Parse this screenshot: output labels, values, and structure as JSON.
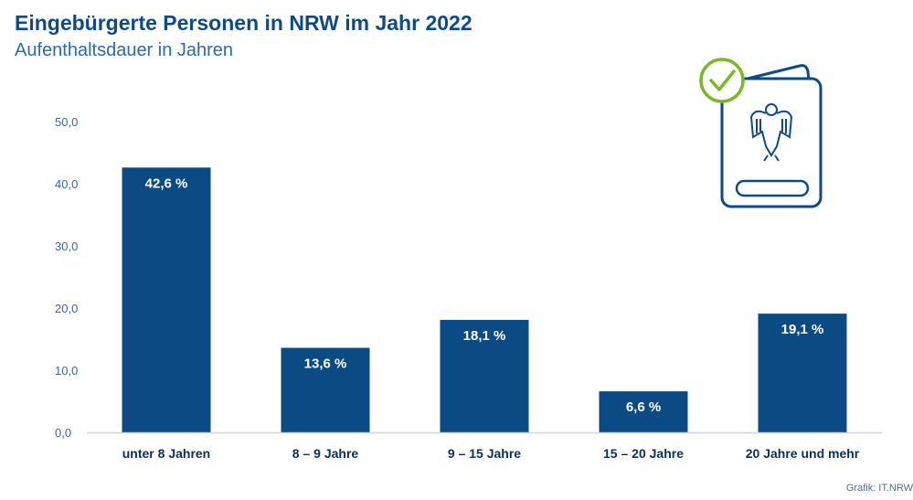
{
  "header": {
    "title": "Eingebürgerte Personen in NRW im Jahr 2022",
    "subtitle": "Aufenthaltsdauer in Jahren"
  },
  "footer": {
    "source": "Grafik: IT.NRW"
  },
  "icon": {
    "name": "passport-check-icon",
    "color": "#0d4a86",
    "check_color": "#7ab828"
  },
  "colors": {
    "bar": "#0b4a82",
    "axis_text": "#2d6aa6",
    "category_text": "#0b2f55",
    "baseline": "#c9d6e3"
  },
  "chart_data": {
    "type": "bar",
    "title": "Eingebürgerte Personen in NRW im Jahr 2022",
    "subtitle": "Aufenthaltsdauer in Jahren",
    "categories": [
      "unter 8 Jahren",
      "8 – 9 Jahre",
      "9 – 15 Jahre",
      "15 – 20 Jahre",
      "20 Jahre und mehr"
    ],
    "values": [
      42.6,
      13.6,
      18.1,
      6.6,
      19.1
    ],
    "value_labels": [
      "42,6 %",
      "13,6 %",
      "18,1 %",
      "6,6 %",
      "19,1 %"
    ],
    "ylim": [
      0,
      50
    ],
    "yticks": [
      0,
      10,
      20,
      30,
      40,
      50
    ],
    "ytick_labels": [
      "0,0",
      "10,0",
      "20,0",
      "30,0",
      "40,0",
      "50,0"
    ],
    "grid": false,
    "legend": "none"
  }
}
